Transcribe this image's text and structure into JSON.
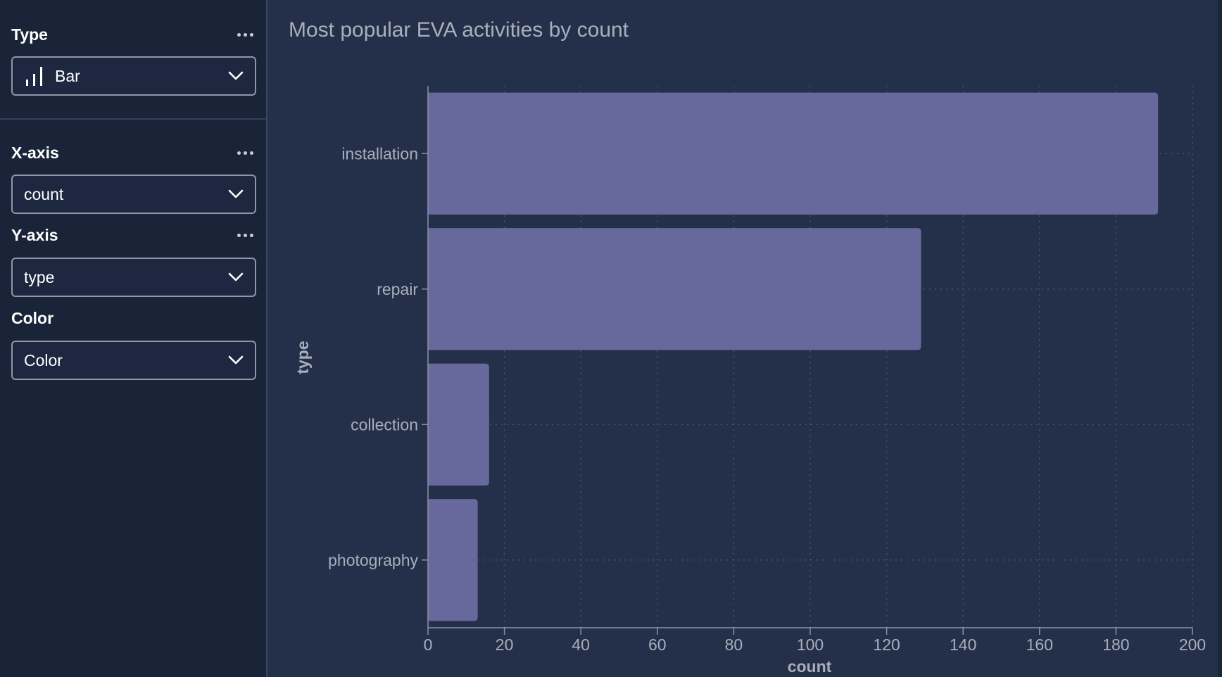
{
  "sidebar": {
    "type_section": {
      "title": "Type",
      "selected": "Bar",
      "icon": "bar-chart-icon"
    },
    "xaxis_section": {
      "title": "X-axis",
      "selected": "count"
    },
    "yaxis_section": {
      "title": "Y-axis",
      "selected": "type"
    },
    "color_section": {
      "title": "Color",
      "selected": "Color"
    }
  },
  "colors": {
    "bar": "#67689c",
    "background": "#24304a",
    "sidebar": "#192438"
  },
  "chart_data": {
    "type": "bar",
    "orientation": "horizontal",
    "title": "Most popular EVA activities by count",
    "xlabel": "count",
    "ylabel": "type",
    "categories": [
      "installation",
      "repair",
      "collection",
      "photography"
    ],
    "values": [
      191,
      129,
      16,
      13
    ],
    "xlim": [
      0,
      200
    ],
    "xticks": [
      "0",
      "20",
      "40",
      "60",
      "80",
      "100",
      "120",
      "140",
      "160",
      "180",
      "200"
    ],
    "grid": true
  }
}
